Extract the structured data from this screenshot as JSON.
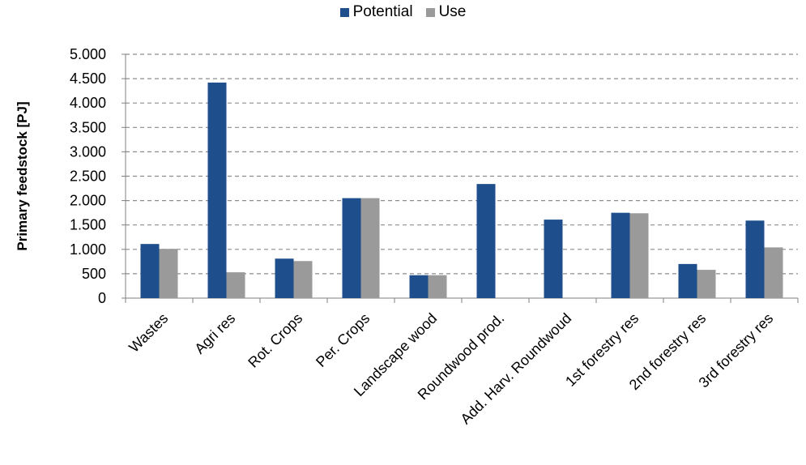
{
  "chart_data": {
    "type": "bar",
    "title": "",
    "xlabel": "",
    "ylabel": "Primary feedstock [PJ]",
    "ylim": [
      0,
      5000
    ],
    "yticks": [
      0,
      500,
      1000,
      1500,
      2000,
      2500,
      3000,
      3500,
      4000,
      4500,
      5000
    ],
    "ytick_labels": [
      "0",
      "500",
      "1.000",
      "1.500",
      "2.000",
      "2.500",
      "3.000",
      "3.500",
      "4.000",
      "4.500",
      "5.000"
    ],
    "grid": true,
    "legend_position": "top-center",
    "categories": [
      "Wastes",
      "Agri res",
      "Rot. Crops",
      "Per. Crops",
      "Landscape wood",
      "Roundwood prod.",
      "Add. Harv. Roundwoud",
      "1st forestry res",
      "2nd forestry res",
      "3rd forestry res"
    ],
    "series": [
      {
        "name": "Potential",
        "color": "#1f4e8c",
        "values": [
          1110,
          4420,
          810,
          2050,
          470,
          2340,
          1610,
          1750,
          700,
          1590
        ]
      },
      {
        "name": "Use",
        "color": "#9a9a9a",
        "values": [
          1010,
          530,
          760,
          2050,
          470,
          0,
          0,
          1740,
          580,
          1040
        ]
      }
    ]
  }
}
